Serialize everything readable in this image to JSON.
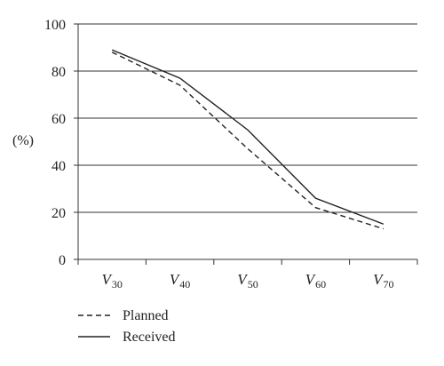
{
  "chart_data": {
    "type": "line",
    "title": "",
    "xlabel": "",
    "ylabel": "(%)",
    "ylim": [
      0,
      100
    ],
    "yticks": [
      0,
      20,
      40,
      60,
      80,
      100
    ],
    "grid": "horizontal",
    "legend_position": "bottom-left",
    "categories": [
      {
        "base": "V",
        "sub": "30"
      },
      {
        "base": "V",
        "sub": "40"
      },
      {
        "base": "V",
        "sub": "50"
      },
      {
        "base": "V",
        "sub": "60"
      },
      {
        "base": "V",
        "sub": "70"
      }
    ],
    "series": [
      {
        "name": "Planned",
        "style": "dashed",
        "color": "#222222",
        "values": [
          88,
          74,
          47,
          22,
          13
        ]
      },
      {
        "name": "Received",
        "style": "solid",
        "color": "#222222",
        "values": [
          89,
          77,
          55,
          26,
          15
        ]
      }
    ]
  }
}
